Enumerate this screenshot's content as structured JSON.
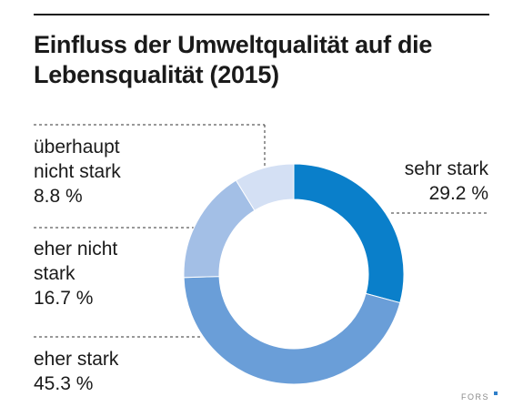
{
  "colors": {
    "background": "#ffffff",
    "text": "#1a1a1a",
    "rule": "#1a1a1a",
    "dashed_leader": "#333333",
    "brand_text": "#8a8a8a",
    "brand_accent": "#2f7fc9"
  },
  "chart_data": {
    "type": "pie",
    "style": "donut",
    "title": "Einfluss der Umweltqualität auf die Lebensqualität (2015)",
    "slices": [
      {
        "name_lines": [
          "sehr stark"
        ],
        "value": 29.2,
        "value_label": "29.2 %",
        "color": "#0a7fca"
      },
      {
        "name_lines": [
          "eher stark"
        ],
        "value": 45.3,
        "value_label": "45.3 %",
        "color": "#6a9ed8"
      },
      {
        "name_lines": [
          "eher nicht",
          "stark"
        ],
        "value": 16.7,
        "value_label": "16.7 %",
        "color": "#a3bfe6"
      },
      {
        "name_lines": [
          "überhaupt",
          "nicht stark"
        ],
        "value": 8.8,
        "value_label": "8.8 %",
        "color": "#d4e0f4"
      }
    ]
  },
  "footer": {
    "brand": "FORS"
  }
}
